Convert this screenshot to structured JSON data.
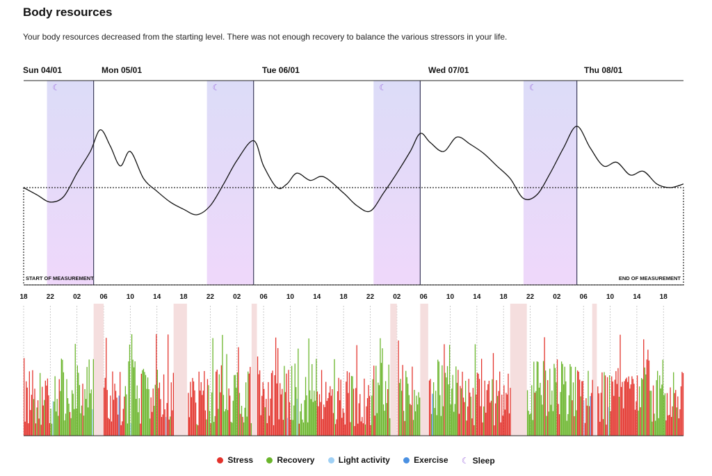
{
  "header": {
    "title": "Body resources",
    "subtitle": "Your body resources decreased from the starting level. There was not enough recovery to balance the various stressors in your life."
  },
  "chart_data": {
    "type": "line",
    "title": "Body resources",
    "day_labels": [
      "Sun 04/01",
      "Mon 05/01",
      "Tue 06/01",
      "Wed 07/01",
      "Thu 08/01"
    ],
    "hour_ticks": [
      "18",
      "22",
      "02",
      "06",
      "10",
      "14",
      "18",
      "22",
      "02",
      "06",
      "10",
      "14",
      "18",
      "22",
      "02",
      "06",
      "10",
      "14",
      "18",
      "22",
      "02",
      "06",
      "10",
      "14",
      "18"
    ],
    "start_label": "START OF MEASUREMENT",
    "end_label": "END OF MEASUREMENT",
    "x_unit": "hours since Sun 04/01 18:00",
    "x_range": [
      0,
      99
    ],
    "sleep_periods": [
      [
        3.5,
        10.5
      ],
      [
        27.5,
        34.5
      ],
      [
        52.5,
        59.5
      ],
      [
        75,
        83
      ]
    ],
    "body_resources_curve": {
      "x": [
        0,
        2,
        4,
        6,
        8,
        10,
        11.5,
        13,
        14.5,
        16,
        18,
        20,
        22,
        24,
        26,
        28,
        30,
        32,
        34.5,
        36,
        38,
        39.5,
        41,
        43,
        45,
        48,
        50,
        52,
        54,
        56,
        58,
        59.5,
        61,
        63,
        65,
        67,
        69,
        71,
        73,
        75,
        77,
        79,
        81,
        83,
        85,
        87,
        89,
        91,
        93,
        95,
        97,
        99
      ],
      "y": [
        50,
        46,
        42,
        45,
        58,
        70,
        82,
        73,
        62,
        70,
        55,
        48,
        42,
        38,
        35,
        40,
        52,
        65,
        76,
        62,
        50,
        52,
        58,
        54,
        56,
        47,
        40,
        37,
        47,
        58,
        70,
        80,
        75,
        70,
        78,
        74,
        69,
        62,
        55,
        44,
        46,
        58,
        72,
        84,
        72,
        62,
        64,
        57,
        59,
        52,
        50,
        52
      ],
      "baseline": 50
    },
    "activity_bars": {
      "y_range": [
        0,
        100
      ],
      "series": [
        "Stress",
        "Recovery",
        "Light activity",
        "Exercise"
      ]
    },
    "legend": [
      "Stress",
      "Recovery",
      "Light activity",
      "Exercise",
      "Sleep"
    ],
    "colors": {
      "stress": "#e3322b",
      "recovery": "#6ab52b",
      "light_activity": "#9fd0f5",
      "exercise": "#4a90e2",
      "sleep": "#a070e0",
      "sleep_band_top": "#dcdcf8",
      "sleep_band_bottom": "#efd8fa",
      "pink_band": "#f5dede"
    }
  },
  "legend": {
    "stress": "Stress",
    "recovery": "Recovery",
    "light_activity": "Light activity",
    "exercise": "Exercise",
    "sleep": "Sleep"
  }
}
